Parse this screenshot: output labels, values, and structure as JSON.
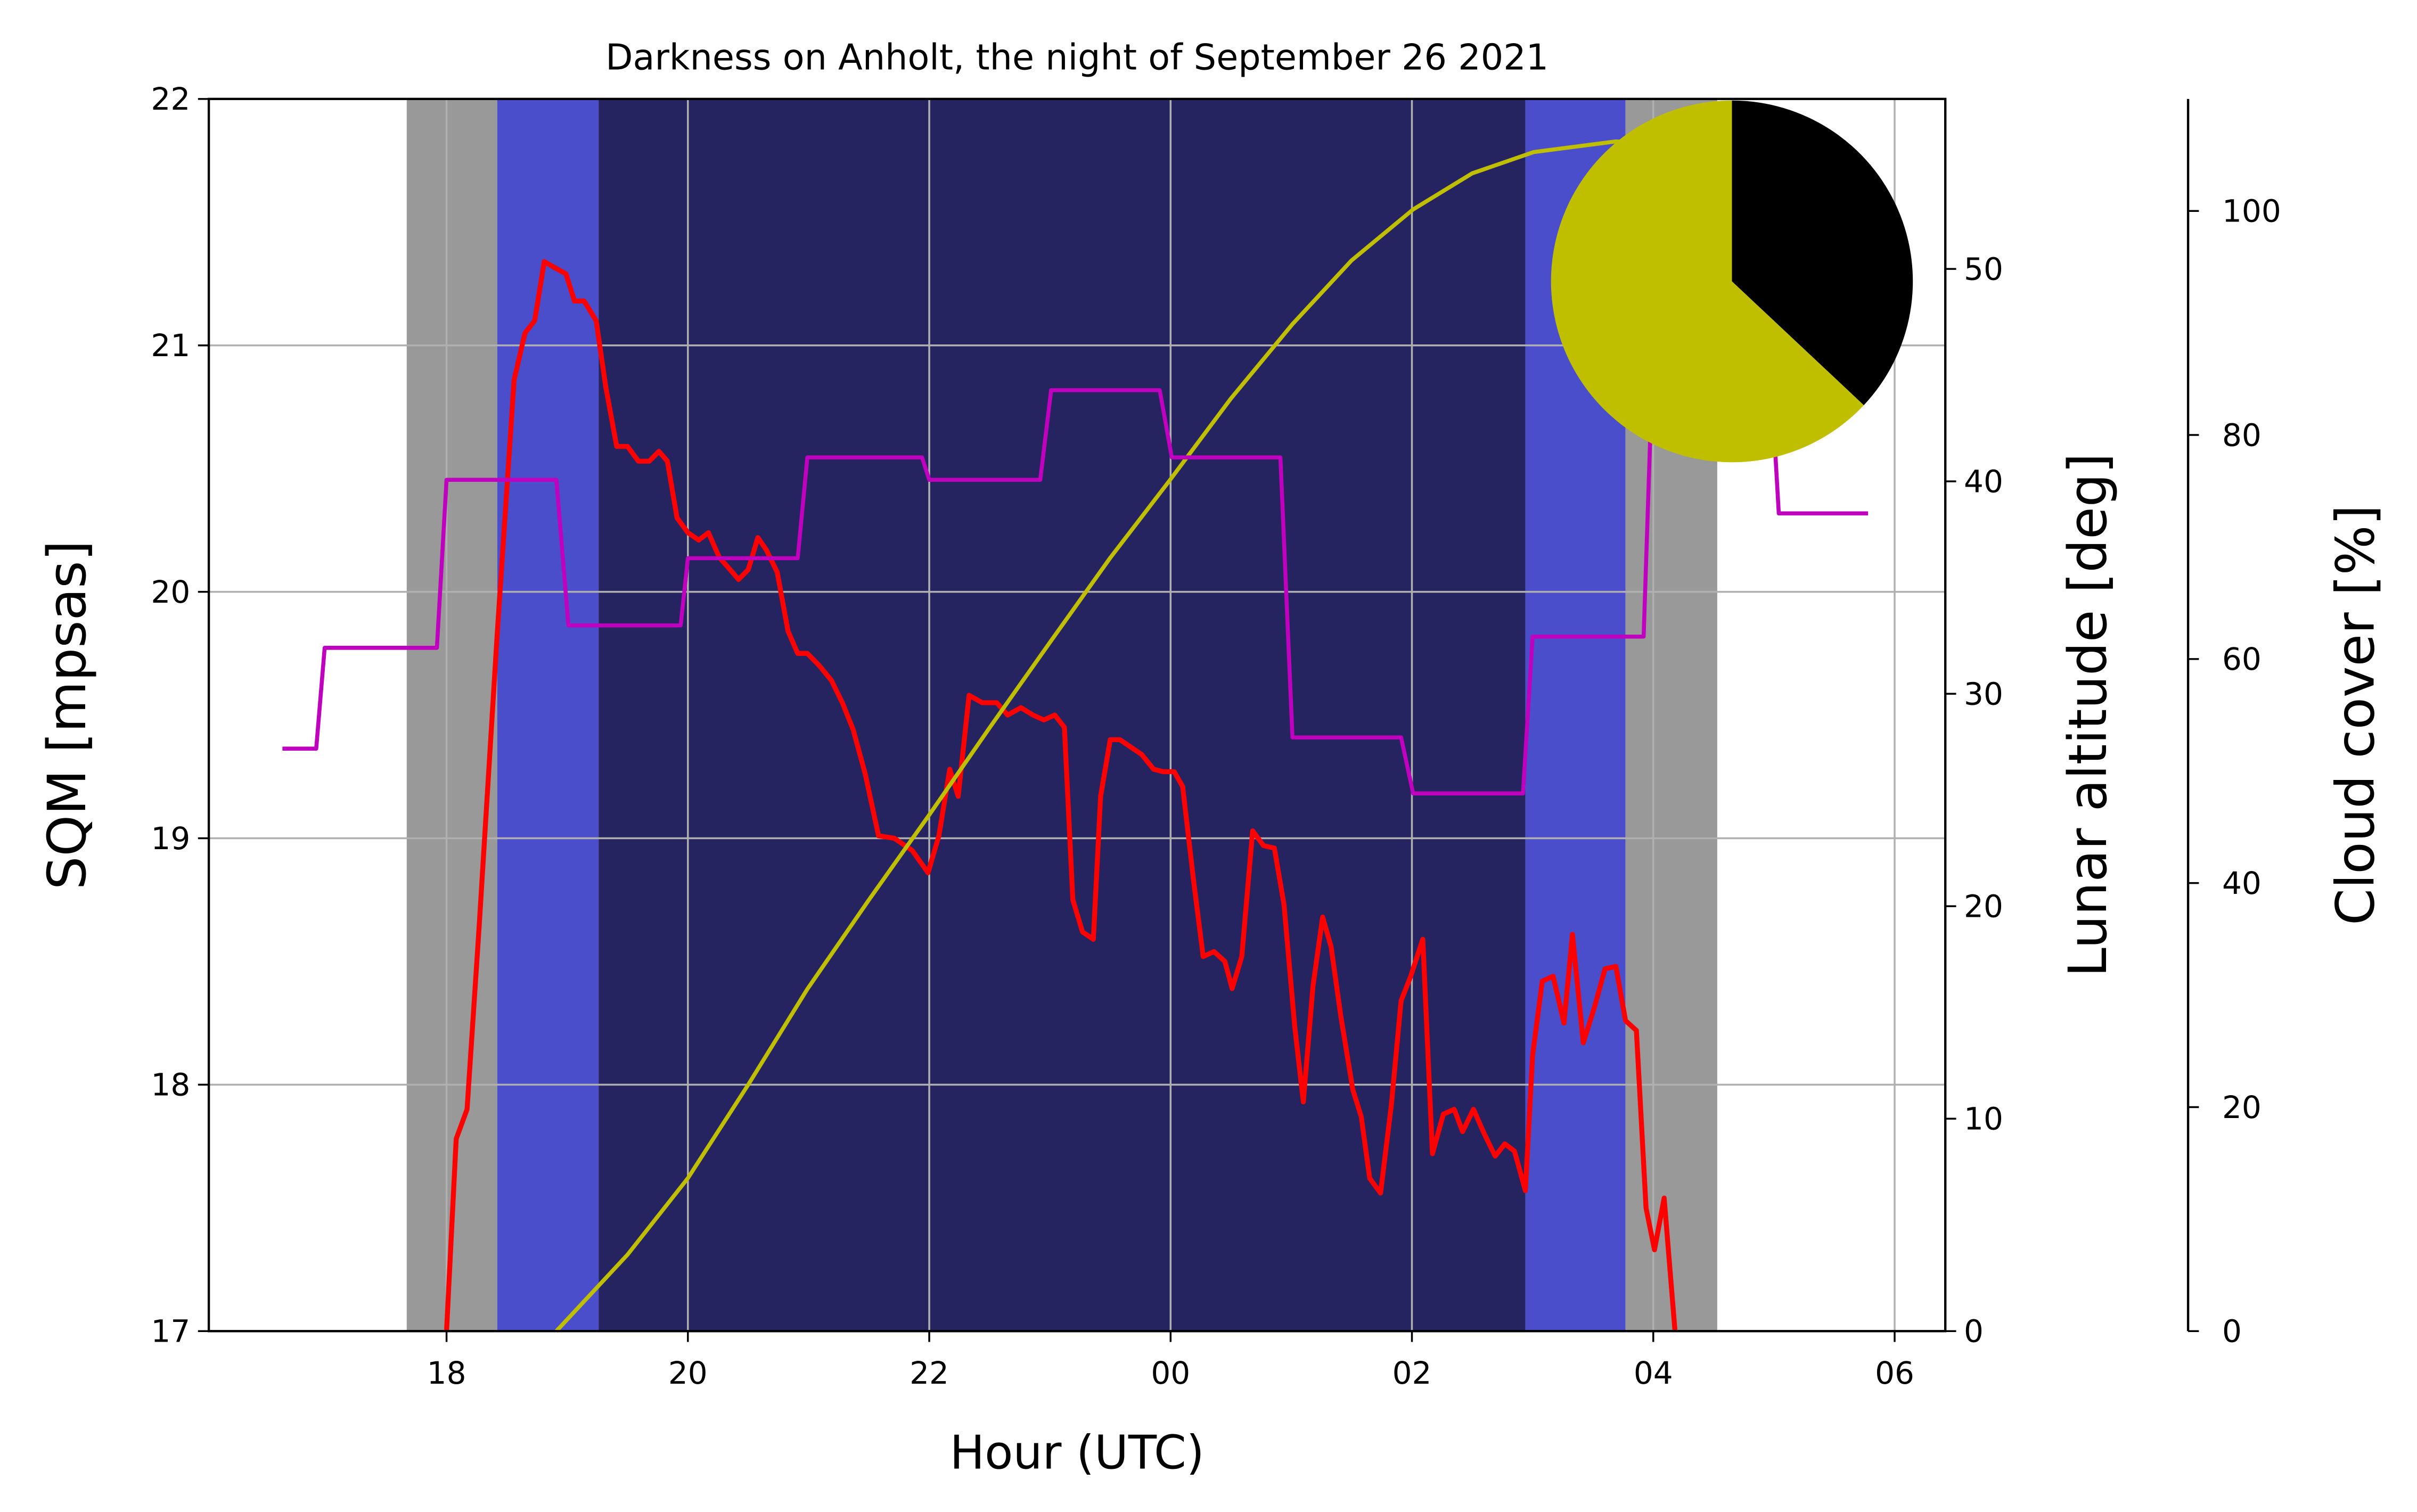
{
  "chart_data": {
    "type": "line",
    "title": "Darkness on Anholt, the night of September 26 2021",
    "x_label": "Hour (UTC)",
    "y_label": "SQM [mpsas]",
    "y2_label": "Lunar altitude [deg]",
    "y3_label": "Cloud cover [%]",
    "xlim": [
      16.03,
      30.42
    ],
    "xticks": [
      18,
      20,
      22,
      {
        "value": 24,
        "label": "00"
      },
      {
        "value": 26,
        "label": "02"
      },
      {
        "value": 28,
        "label": "04"
      },
      {
        "value": 30,
        "label": "06"
      }
    ],
    "ylim": [
      17,
      22
    ],
    "yticks": [
      17,
      18,
      19,
      20,
      21,
      22
    ],
    "y2lim": [
      0,
      58
    ],
    "y2ticks": [
      0,
      10,
      20,
      30,
      40,
      50
    ],
    "y3lim": [
      0,
      110
    ],
    "y3ticks": [
      0,
      20,
      40,
      60,
      80,
      100
    ],
    "grid": true,
    "shading": [
      {
        "start": 17.67,
        "end": 18.42,
        "color": "#999999"
      },
      {
        "start": 18.42,
        "end": 19.26,
        "color": "#4b4ecb"
      },
      {
        "start": 19.26,
        "end": 26.94,
        "color": "#252461"
      },
      {
        "start": 26.94,
        "end": 27.77,
        "color": "#4b4ecb"
      },
      {
        "start": 27.77,
        "end": 28.53,
        "color": "#999999"
      }
    ],
    "series": [
      {
        "name": "SQM",
        "color": "#ff0000",
        "axis": "y",
        "x": [
          18.0,
          18.08,
          18.17,
          18.27,
          18.42,
          18.56,
          18.65,
          18.73,
          18.81,
          18.88,
          18.99,
          19.06,
          19.14,
          19.24,
          19.32,
          19.41,
          19.5,
          19.59,
          19.68,
          19.76,
          19.83,
          19.91,
          20.0,
          20.09,
          20.17,
          20.26,
          20.35,
          20.42,
          20.5,
          20.58,
          20.65,
          20.74,
          20.83,
          20.91,
          20.99,
          21.09,
          21.19,
          21.28,
          21.37,
          21.47,
          21.58,
          21.71,
          21.86,
          21.99,
          22.08,
          22.17,
          22.24,
          22.33,
          22.44,
          22.56,
          22.65,
          22.76,
          22.86,
          22.95,
          23.04,
          23.12,
          23.19,
          23.27,
          23.36,
          23.42,
          23.5,
          23.58,
          23.67,
          23.76,
          23.86,
          23.94,
          24.03,
          24.1,
          24.19,
          24.27,
          24.36,
          24.45,
          24.51,
          24.59,
          24.68,
          24.77,
          24.86,
          24.94,
          25.03,
          25.1,
          25.18,
          25.26,
          25.33,
          25.41,
          25.51,
          25.58,
          25.65,
          25.74,
          25.83,
          25.91,
          25.99,
          26.09,
          26.17,
          26.26,
          26.35,
          26.42,
          26.51,
          26.6,
          26.69,
          26.77,
          26.85,
          26.94,
          27.0,
          27.08,
          27.17,
          27.26,
          27.33,
          27.42,
          27.51,
          27.6,
          27.69,
          27.77,
          27.86,
          27.94,
          28.01,
          28.09,
          28.18
        ],
        "values": [
          17.0,
          17.78,
          17.9,
          18.64,
          19.83,
          20.86,
          21.05,
          21.1,
          21.34,
          21.32,
          21.29,
          21.18,
          21.18,
          21.1,
          20.83,
          20.59,
          20.59,
          20.53,
          20.53,
          20.57,
          20.53,
          20.3,
          20.24,
          20.21,
          20.24,
          20.14,
          20.09,
          20.05,
          20.09,
          20.22,
          20.17,
          20.08,
          19.84,
          19.75,
          19.75,
          19.7,
          19.64,
          19.55,
          19.44,
          19.26,
          19.01,
          19.0,
          18.95,
          18.86,
          19.01,
          19.28,
          19.17,
          19.58,
          19.55,
          19.55,
          19.5,
          19.53,
          19.5,
          19.48,
          19.5,
          19.45,
          18.75,
          18.62,
          18.59,
          19.17,
          19.4,
          19.4,
          19.37,
          19.34,
          19.28,
          19.27,
          19.27,
          19.21,
          18.83,
          18.52,
          18.54,
          18.5,
          18.39,
          18.52,
          19.03,
          18.97,
          18.96,
          18.73,
          18.23,
          17.93,
          18.4,
          18.68,
          18.56,
          18.28,
          17.98,
          17.87,
          17.62,
          17.56,
          17.92,
          18.34,
          18.44,
          18.59,
          17.72,
          17.88,
          17.9,
          17.81,
          17.9,
          17.8,
          17.71,
          17.76,
          17.73,
          17.57,
          18.12,
          18.42,
          18.44,
          18.25,
          18.61,
          18.17,
          18.31,
          18.47,
          18.48,
          18.26,
          18.22,
          17.5,
          17.33,
          17.54,
          17.0
        ]
      },
      {
        "name": "Lunar altitude",
        "color": "#bfbf00",
        "axis": "y2",
        "x": [
          18.91,
          19.5,
          20.0,
          20.5,
          20.99,
          21.5,
          22.0,
          22.5,
          23.01,
          23.5,
          24.0,
          24.5,
          25.01,
          25.5,
          26.01,
          26.5,
          27.01,
          27.69,
          28.0
        ],
        "values": [
          0,
          3.6,
          7.2,
          11.6,
          16.1,
          20.3,
          24.3,
          28.4,
          32.5,
          36.4,
          40.1,
          43.9,
          47.4,
          50.4,
          52.8,
          54.5,
          55.5,
          56.0,
          55.9
        ]
      },
      {
        "name": "Cloud cover",
        "color": "#bf00bf",
        "axis": "y3",
        "x": [
          16.64,
          16.92,
          16.99,
          17.92,
          18.0,
          18.91,
          19.01,
          19.94,
          20.0,
          20.91,
          20.99,
          21.94,
          22.0,
          22.92,
          23.01,
          23.91,
          24.01,
          24.91,
          25.01,
          25.91,
          26.01,
          26.92,
          27.0,
          27.92,
          28.0,
          28.96,
          29.04,
          29.78
        ],
        "values": [
          52,
          52,
          61,
          61,
          76,
          76,
          63,
          63,
          69,
          69,
          78,
          78,
          76,
          76,
          84,
          84,
          78,
          78,
          53,
          53,
          48,
          48,
          62,
          62,
          88,
          88,
          73,
          73
        ]
      }
    ],
    "inset_pie": {
      "values": [
        37,
        63
      ],
      "colors": [
        "#000000",
        "#bfbf00"
      ]
    }
  }
}
